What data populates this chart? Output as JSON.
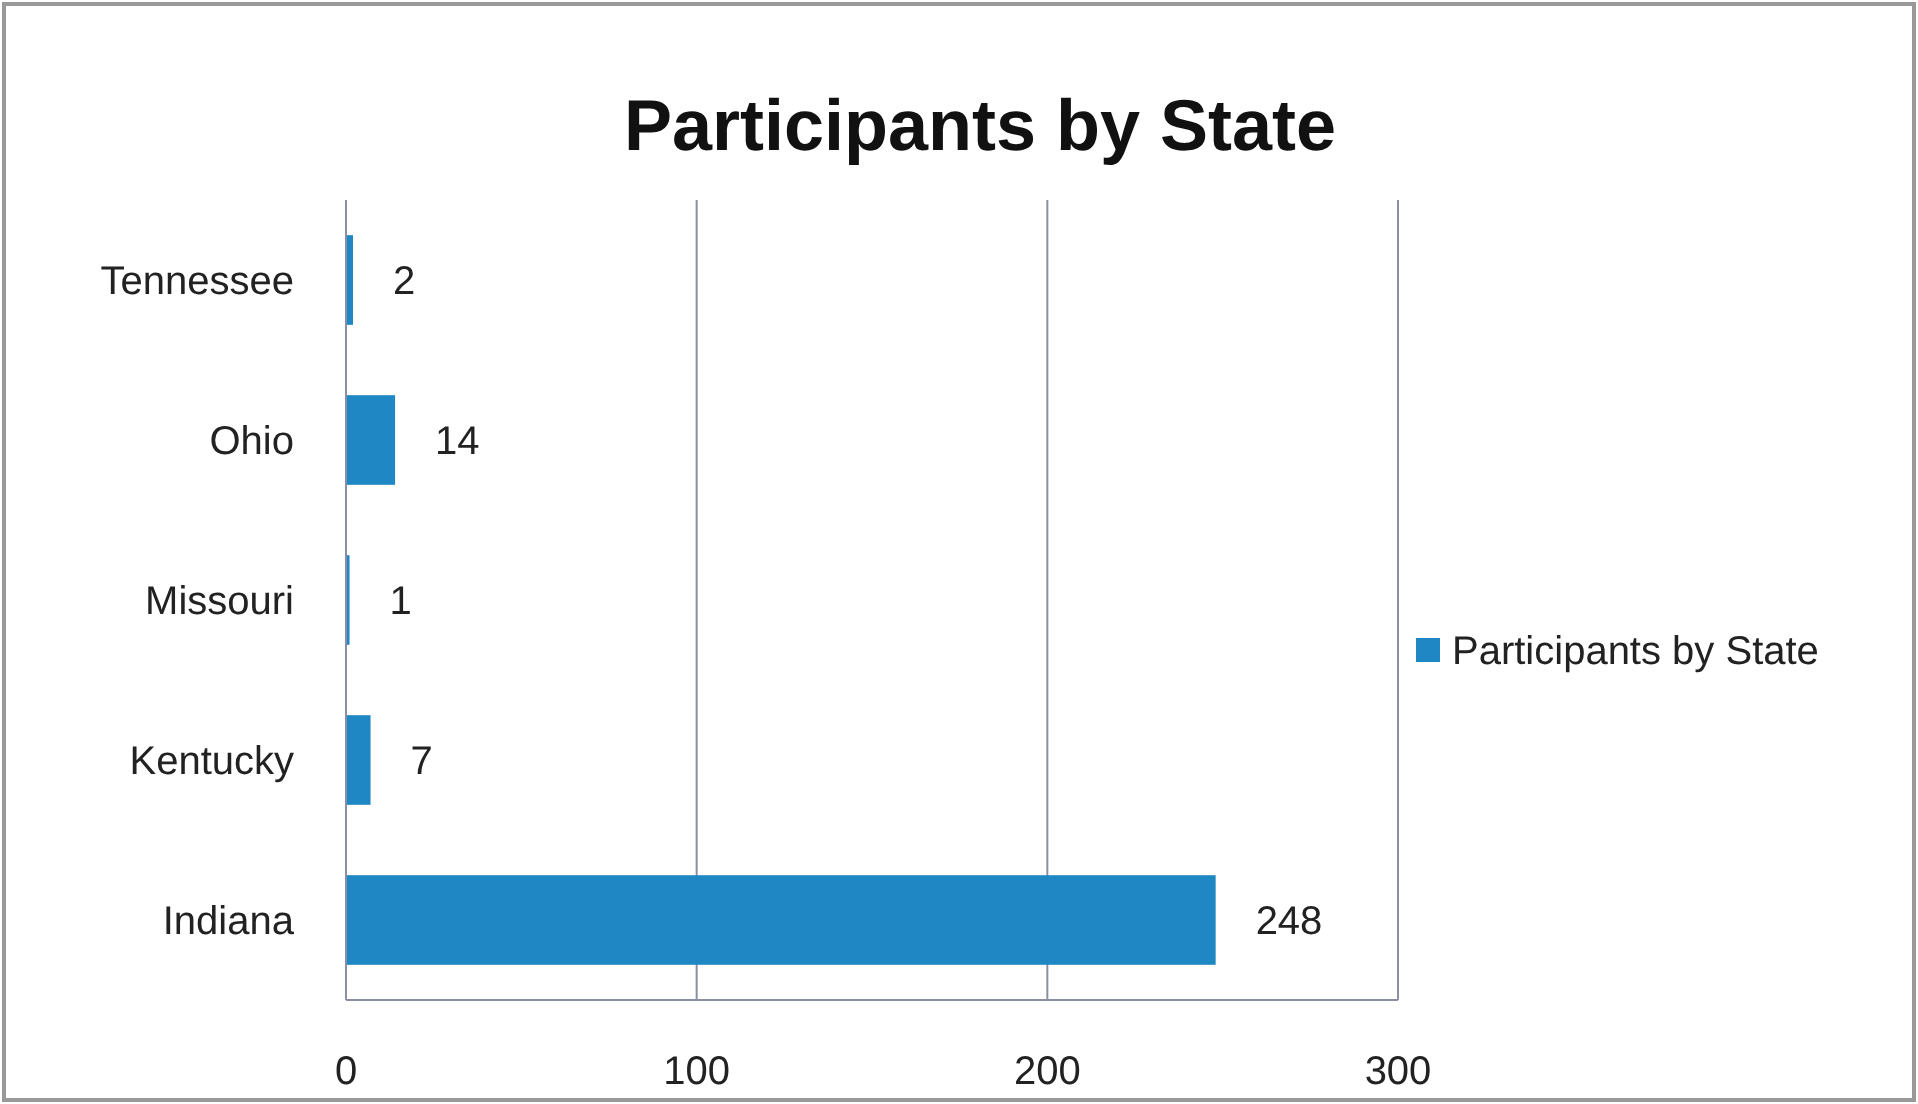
{
  "chart_data": {
    "type": "bar",
    "orientation": "horizontal",
    "title": "Participants by State",
    "categories": [
      "Tennessee",
      "Ohio",
      "Missouri",
      "Kentucky",
      "Indiana"
    ],
    "series": [
      {
        "name": "Participants by State",
        "color": "#1f88c4",
        "values": [
          2,
          14,
          1,
          7,
          248
        ]
      }
    ],
    "xlim": [
      0,
      300
    ],
    "xticks": [
      0,
      100,
      200,
      300
    ],
    "grid": "x",
    "legend": "right",
    "data_labels": true
  }
}
